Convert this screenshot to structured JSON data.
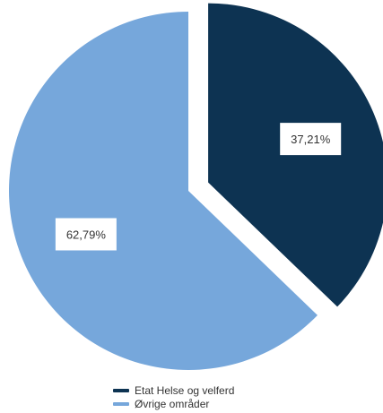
{
  "chart_data": {
    "type": "pie",
    "title": "",
    "slices": [
      {
        "label": "Etat Helse og velferd",
        "value": 37.21,
        "display": "37,21%",
        "color": "#0d3352",
        "exploded": true
      },
      {
        "label": "Øvrige områder",
        "value": 62.79,
        "display": "62,79%",
        "color": "#76a7db",
        "exploded": false
      }
    ],
    "legend_position": "bottom"
  }
}
